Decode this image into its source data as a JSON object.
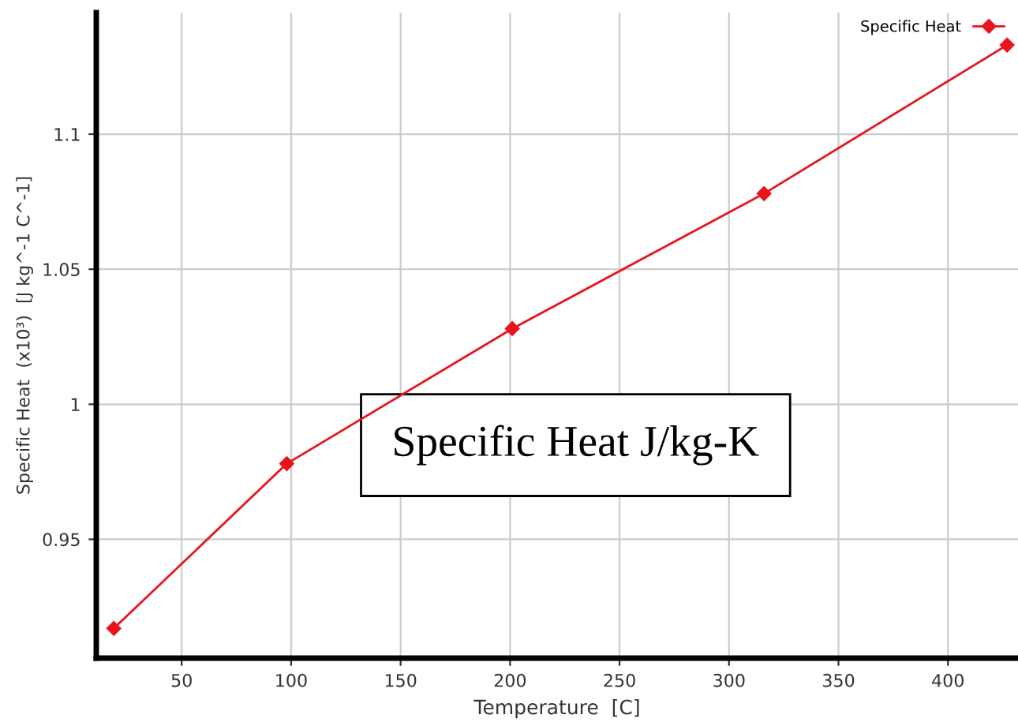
{
  "chart_data": {
    "type": "line",
    "xlabel": "Temperature  [C]",
    "ylabel": "Specific Heat  (x10³)  [J kg^-1 C^-1]",
    "x": [
      19,
      98,
      201,
      316,
      427
    ],
    "series": [
      {
        "name": "Specific Heat",
        "color": "#e8141c",
        "values": [
          0.917,
          0.978,
          1.028,
          1.078,
          1.133
        ]
      }
    ],
    "xlim": [
      11,
      432
    ],
    "ylim": [
      0.906,
      1.145
    ],
    "xticks": [
      50,
      100,
      150,
      200,
      250,
      300,
      350,
      400
    ],
    "yticks": [
      0.95,
      1,
      1.05,
      1.1
    ],
    "grid": true,
    "legend": "top right",
    "marker": "diamond",
    "line_style": "solid",
    "annotations": [
      "Specific Heat J/kg-K"
    ]
  }
}
